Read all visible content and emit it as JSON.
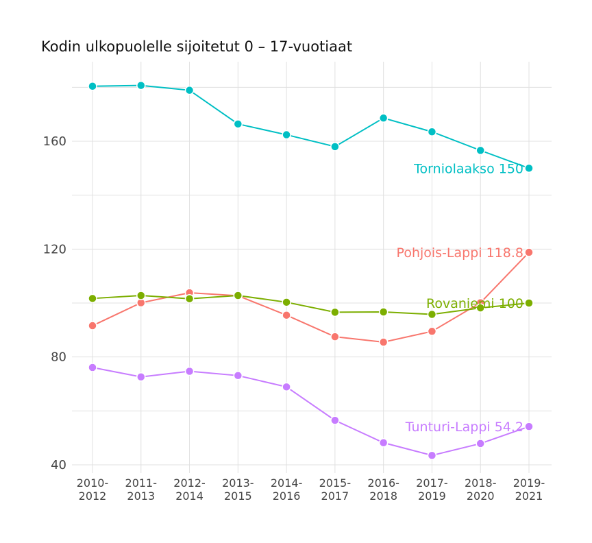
{
  "chart_data": {
    "type": "line",
    "title": "Kodin ulkopuolelle sijoitetut 0 – 17-vuotiaat",
    "categories": [
      [
        "2010-",
        "2012"
      ],
      [
        "2011-",
        "2013"
      ],
      [
        "2012-",
        "2014"
      ],
      [
        "2013-",
        "2015"
      ],
      [
        "2014-",
        "2016"
      ],
      [
        "2015-",
        "2017"
      ],
      [
        "2016-",
        "2018"
      ],
      [
        "2017-",
        "2019"
      ],
      [
        "2018-",
        "2020"
      ],
      [
        "2019-",
        "2021"
      ]
    ],
    "ylim": [
      37,
      187
    ],
    "yticks": [
      40,
      80,
      120,
      160
    ],
    "grid": true,
    "legend": "end-of-line labels",
    "series": [
      {
        "name": "Tornionlaakso",
        "color": "#00bfc4",
        "label": "Torniolaakso 150",
        "values": [
          180.4,
          180.7,
          178.9,
          166.4,
          162.4,
          158.0,
          168.6,
          163.5,
          156.6,
          150.0
        ]
      },
      {
        "name": "Pohjois-Lappi",
        "color": "#f8766d",
        "label": "Pohjois-Lappi 118.8",
        "values": [
          91.6,
          100.1,
          103.8,
          102.7,
          95.5,
          87.5,
          85.5,
          89.5,
          100.1,
          118.8
        ]
      },
      {
        "name": "Rovaniemi",
        "color": "#7cae00",
        "label": "Rovaniemi 100",
        "values": [
          101.7,
          102.8,
          101.6,
          102.8,
          100.3,
          96.6,
          96.7,
          95.8,
          98.2,
          100.0
        ]
      },
      {
        "name": "Tunturi-Lappi",
        "color": "#c77cff",
        "label": "Tunturi-Lappi 54.2",
        "values": [
          76.1,
          72.6,
          74.7,
          73.1,
          68.9,
          56.5,
          48.2,
          43.5,
          47.9,
          54.2
        ]
      }
    ]
  }
}
